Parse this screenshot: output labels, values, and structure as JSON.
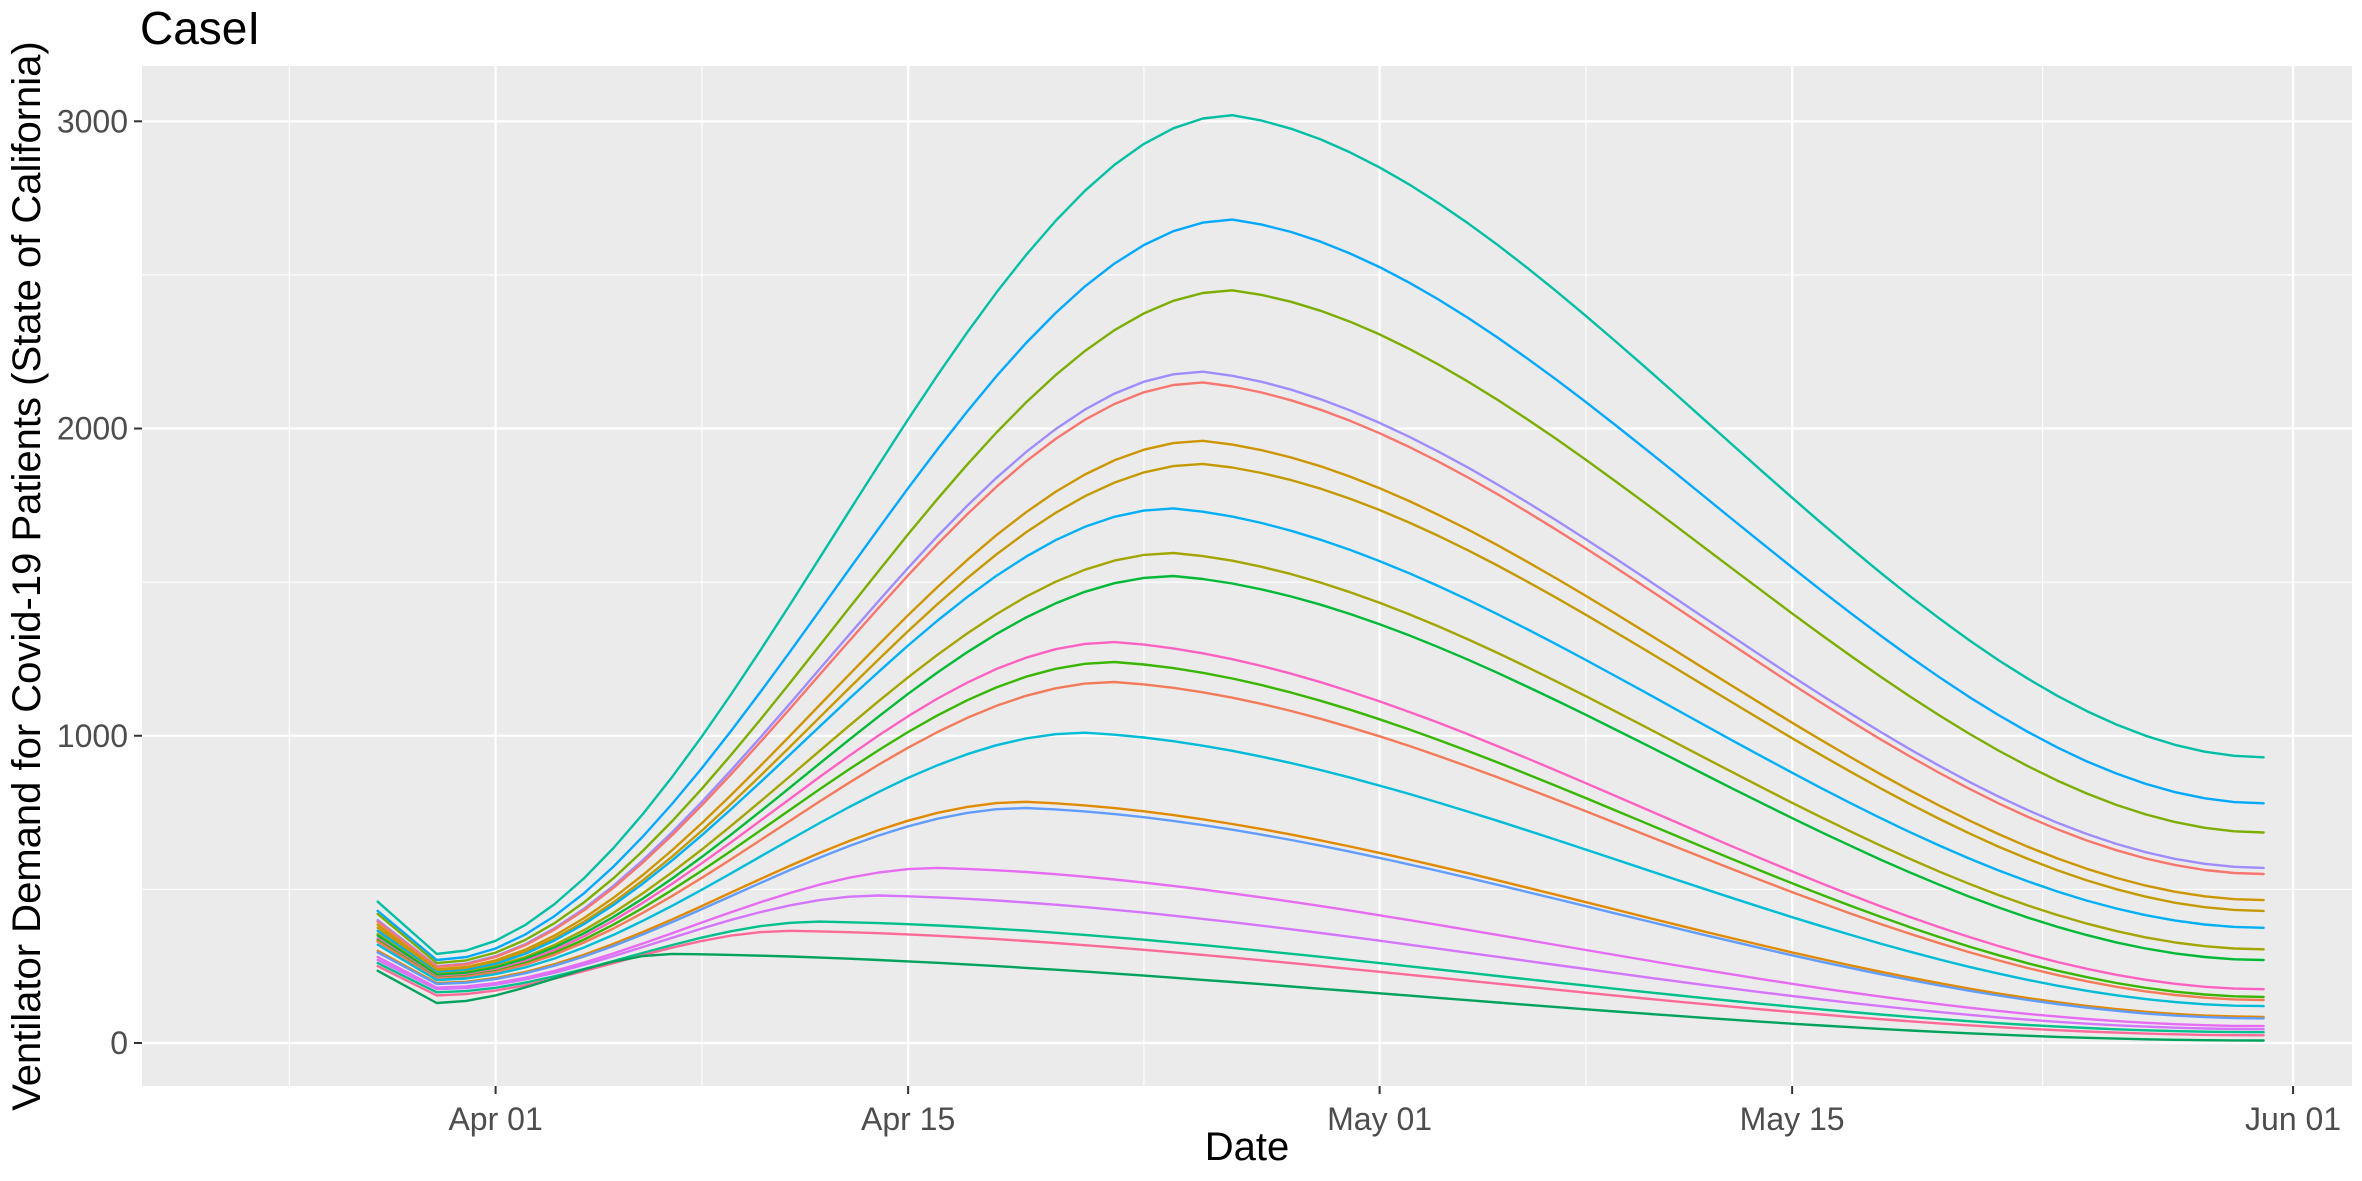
{
  "chart_data": {
    "type": "line",
    "title": "CaseI",
    "xlabel": "Date",
    "ylabel": "Ventilator Demand for Covid-19 Patients (State of California)",
    "x_ticks": [
      "Apr 01",
      "Apr 15",
      "May 01",
      "May 15",
      "Jun 01"
    ],
    "x_tick_dates": [
      "2020-04-01",
      "2020-04-15",
      "2020-05-01",
      "2020-05-15",
      "2020-06-01"
    ],
    "y_ticks": [
      "0",
      "1000",
      "2000",
      "3000"
    ],
    "ylim": [
      -140,
      3180
    ],
    "xlim": [
      "2020-03-20",
      "2020-06-03"
    ],
    "grid": true,
    "legend": "none",
    "panel_background": "#ebebeb",
    "grid_color": "#ffffff",
    "series": [
      {
        "color": "#00BFA4",
        "start": 460,
        "dip": 290,
        "peak": 3020,
        "peak_date": "2020-04-26",
        "end": 930
      },
      {
        "color": "#00A9FF",
        "start": 430,
        "dip": 270,
        "peak": 2680,
        "peak_date": "2020-04-26",
        "end": 780
      },
      {
        "color": "#7CAE00",
        "start": 420,
        "dip": 260,
        "peak": 2450,
        "peak_date": "2020-04-26",
        "end": 685
      },
      {
        "color": "#9F8CFF",
        "start": 400,
        "dip": 250,
        "peak": 2185,
        "peak_date": "2020-04-25",
        "end": 570
      },
      {
        "color": "#F8766D",
        "start": 395,
        "dip": 248,
        "peak": 2150,
        "peak_date": "2020-04-25",
        "end": 550
      },
      {
        "color": "#CD9600",
        "start": 385,
        "dip": 240,
        "peak": 1960,
        "peak_date": "2020-04-25",
        "end": 465
      },
      {
        "color": "#C49A00",
        "start": 375,
        "dip": 235,
        "peak": 1885,
        "peak_date": "2020-04-25",
        "end": 430
      },
      {
        "color": "#00B0F6",
        "start": 365,
        "dip": 230,
        "peak": 1740,
        "peak_date": "2020-04-24",
        "end": 375
      },
      {
        "color": "#A3A500",
        "start": 355,
        "dip": 225,
        "peak": 1595,
        "peak_date": "2020-04-24",
        "end": 305
      },
      {
        "color": "#00B936",
        "start": 350,
        "dip": 222,
        "peak": 1520,
        "peak_date": "2020-04-24",
        "end": 270
      },
      {
        "color": "#FF61C3",
        "start": 340,
        "dip": 215,
        "peak": 1305,
        "peak_date": "2020-04-22",
        "end": 175
      },
      {
        "color": "#39B600",
        "start": 335,
        "dip": 212,
        "peak": 1240,
        "peak_date": "2020-04-22",
        "end": 150
      },
      {
        "color": "#F37B59",
        "start": 330,
        "dip": 210,
        "peak": 1175,
        "peak_date": "2020-04-22",
        "end": 140
      },
      {
        "color": "#00BCD8",
        "start": 320,
        "dip": 205,
        "peak": 1010,
        "peak_date": "2020-04-21",
        "end": 120
      },
      {
        "color": "#E18A00",
        "start": 300,
        "dip": 195,
        "peak": 785,
        "peak_date": "2020-04-19",
        "end": 85
      },
      {
        "color": "#619CFF",
        "start": 295,
        "dip": 192,
        "peak": 765,
        "peak_date": "2020-04-19",
        "end": 80
      },
      {
        "color": "#E76BF3",
        "start": 280,
        "dip": 180,
        "peak": 570,
        "peak_date": "2020-04-16",
        "end": 55
      },
      {
        "color": "#D575FE",
        "start": 270,
        "dip": 175,
        "peak": 480,
        "peak_date": "2020-04-14",
        "end": 45
      },
      {
        "color": "#00C08B",
        "start": 260,
        "dip": 165,
        "peak": 395,
        "peak_date": "2020-04-12",
        "end": 35
      },
      {
        "color": "#FF6A98",
        "start": 250,
        "dip": 155,
        "peak": 365,
        "peak_date": "2020-04-11",
        "end": 25
      },
      {
        "color": "#00A35C",
        "start": 235,
        "dip": 130,
        "peak": 290,
        "peak_date": "2020-04-07",
        "end": 8
      }
    ]
  }
}
